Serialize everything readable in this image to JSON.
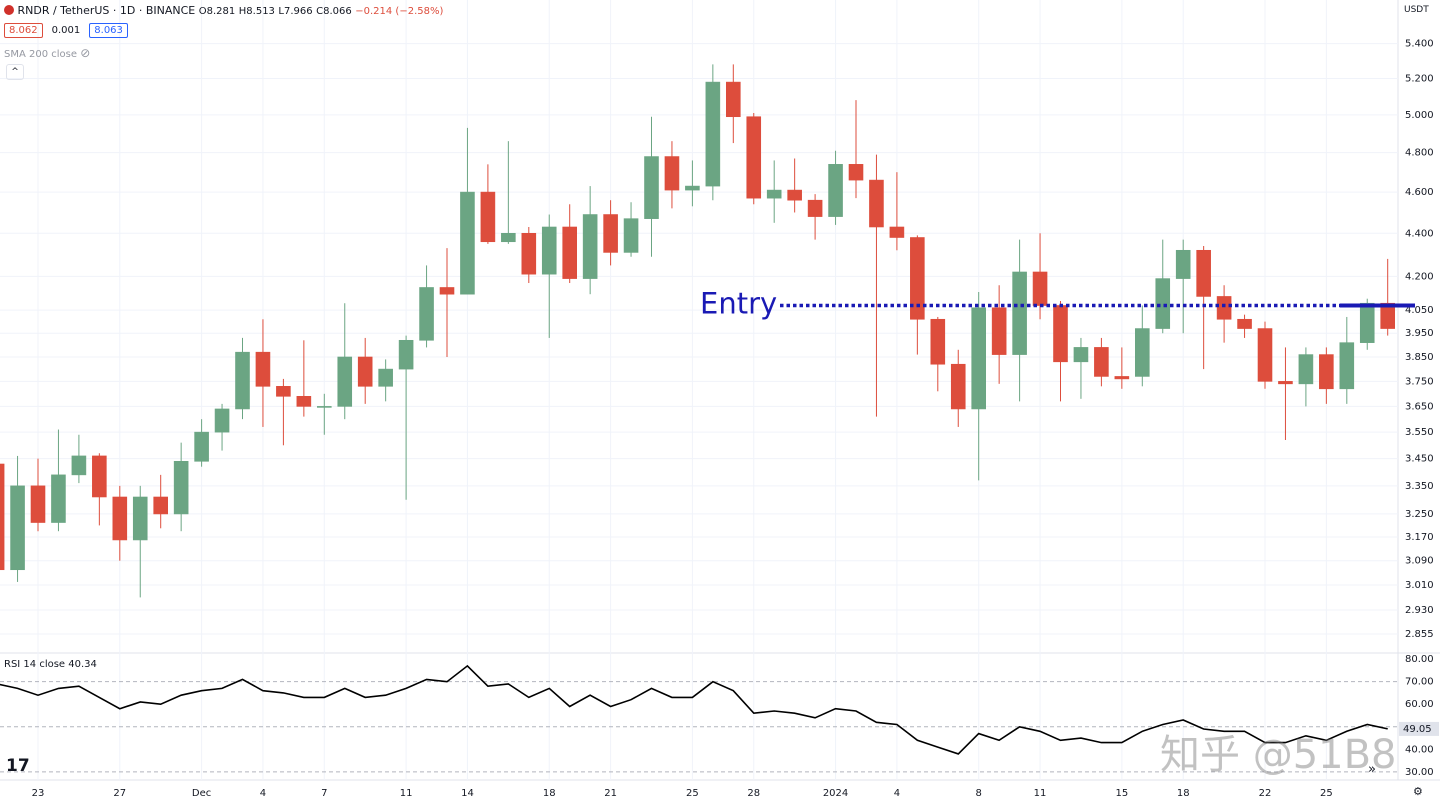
{
  "header": {
    "symbol": "RNDR / TetherUS · 1D · BINANCE",
    "ohlc": [
      "O8.281",
      "H8.513",
      "L7.966",
      "C8.066",
      "−0.214 (−2.58%)"
    ],
    "badges": [
      "8.062",
      "0.001",
      "8.063"
    ],
    "indicator": "SMA 200 close",
    "currency": "USDT",
    "watermark": "知乎 @51B8"
  },
  "chart_data": [
    {
      "type": "candlestick",
      "log": true,
      "grid": true,
      "up_color": "#6ba583",
      "down_color": "#dd4d3c",
      "categories": [
        null,
        null,
        "23",
        null,
        null,
        null,
        "27",
        null,
        null,
        null,
        "Dec",
        null,
        null,
        "4",
        null,
        null,
        "7",
        null,
        null,
        null,
        "11",
        null,
        null,
        "14",
        null,
        null,
        null,
        "18",
        null,
        null,
        "21",
        null,
        null,
        null,
        "25",
        null,
        null,
        "28",
        null,
        null,
        null,
        "2024",
        null,
        null,
        "4",
        null,
        null,
        null,
        "8",
        null,
        null,
        "11",
        null,
        null,
        null,
        "15",
        null,
        null,
        "18",
        null,
        null,
        null,
        "22",
        null,
        null,
        "25",
        null,
        null,
        null
      ],
      "open": [
        3.43,
        3.06,
        3.35,
        3.22,
        3.39,
        3.46,
        3.31,
        3.16,
        3.31,
        3.25,
        3.44,
        3.55,
        3.64,
        3.87,
        3.73,
        3.69,
        3.65,
        3.65,
        3.85,
        3.73,
        3.8,
        3.92,
        4.15,
        4.12,
        4.6,
        4.36,
        4.4,
        4.21,
        4.43,
        4.19,
        4.49,
        4.31,
        4.47,
        4.78,
        4.61,
        4.63,
        5.18,
        4.99,
        4.57,
        4.61,
        4.56,
        4.48,
        4.74,
        4.66,
        4.43,
        4.38,
        4.01,
        3.82,
        3.64,
        4.06,
        3.86,
        4.22,
        4.07,
        3.83,
        3.89,
        3.77,
        3.77,
        3.97,
        4.19,
        4.32,
        4.11,
        4.01,
        3.97,
        3.75,
        3.74,
        3.86,
        3.72,
        3.91,
        4.08
      ],
      "high": [
        3.45,
        3.46,
        3.45,
        3.56,
        3.54,
        3.47,
        3.35,
        3.35,
        3.39,
        3.51,
        3.6,
        3.66,
        3.93,
        4.01,
        3.76,
        3.92,
        3.7,
        4.08,
        3.93,
        3.84,
        3.94,
        4.25,
        4.33,
        4.93,
        4.74,
        4.86,
        4.43,
        4.49,
        4.54,
        4.63,
        4.56,
        4.55,
        4.99,
        4.86,
        4.76,
        5.28,
        5.28,
        5.01,
        4.76,
        4.77,
        4.59,
        4.81,
        5.08,
        4.79,
        4.7,
        4.39,
        4.02,
        3.88,
        4.13,
        4.16,
        4.37,
        4.4,
        4.09,
        3.93,
        3.93,
        3.89,
        4.07,
        4.37,
        4.37,
        4.34,
        4.16,
        4.03,
        4.0,
        3.89,
        3.89,
        3.89,
        4.02,
        4.1,
        4.28
      ],
      "low": [
        3.03,
        3.02,
        3.19,
        3.19,
        3.36,
        3.21,
        3.09,
        2.97,
        3.2,
        3.19,
        3.42,
        3.48,
        3.6,
        3.57,
        3.5,
        3.61,
        3.54,
        3.6,
        3.66,
        3.67,
        3.3,
        3.89,
        3.85,
        4.12,
        4.35,
        4.35,
        4.17,
        3.93,
        4.17,
        4.12,
        4.25,
        4.29,
        4.29,
        4.52,
        4.53,
        4.56,
        4.85,
        4.54,
        4.45,
        4.5,
        4.37,
        4.44,
        4.57,
        3.61,
        4.32,
        3.86,
        3.71,
        3.57,
        3.37,
        3.74,
        3.67,
        4.01,
        3.67,
        3.68,
        3.73,
        3.72,
        3.73,
        3.95,
        3.95,
        3.8,
        3.91,
        3.93,
        3.72,
        3.52,
        3.65,
        3.66,
        3.66,
        3.88,
        3.94
      ],
      "close": [
        3.06,
        3.35,
        3.22,
        3.39,
        3.46,
        3.31,
        3.16,
        3.31,
        3.25,
        3.44,
        3.55,
        3.64,
        3.87,
        3.73,
        3.69,
        3.65,
        3.65,
        3.85,
        3.73,
        3.8,
        3.92,
        4.15,
        4.12,
        4.6,
        4.36,
        4.4,
        4.21,
        4.43,
        4.19,
        4.49,
        4.31,
        4.47,
        4.78,
        4.61,
        4.63,
        5.18,
        4.99,
        4.57,
        4.61,
        4.56,
        4.48,
        4.74,
        4.66,
        4.43,
        4.38,
        4.01,
        3.82,
        3.64,
        4.06,
        3.86,
        4.22,
        4.07,
        3.83,
        3.89,
        3.77,
        3.76,
        3.97,
        4.19,
        4.32,
        4.11,
        4.01,
        3.97,
        3.75,
        3.74,
        3.86,
        3.72,
        3.91,
        4.08,
        3.97
      ],
      "ylim": [
        2.8,
        5.66
      ],
      "yticks": [
        {
          "value": 5.4,
          "label": "5.400"
        },
        {
          "value": 5.2,
          "label": "5.200"
        },
        {
          "value": 5.0,
          "label": "5.000"
        },
        {
          "value": 4.8,
          "label": "4.800"
        },
        {
          "value": 4.6,
          "label": "4.600"
        },
        {
          "value": 4.4,
          "label": "4.400"
        },
        {
          "value": 4.2,
          "label": "4.200"
        },
        {
          "value": 4.05,
          "label": "4.050"
        },
        {
          "value": 3.95,
          "label": "3.950"
        },
        {
          "value": 3.85,
          "label": "3.850"
        },
        {
          "value": 3.75,
          "label": "3.750"
        },
        {
          "value": 3.65,
          "label": "3.650"
        },
        {
          "value": 3.55,
          "label": "3.550"
        },
        {
          "value": 3.45,
          "label": "3.450"
        },
        {
          "value": 3.35,
          "label": "3.350"
        },
        {
          "value": 3.25,
          "label": "3.250"
        },
        {
          "value": 3.17,
          "label": "3.170"
        },
        {
          "value": 3.09,
          "label": "3.090"
        },
        {
          "value": 3.01,
          "label": "3.010"
        },
        {
          "value": 2.93,
          "label": "2.930"
        },
        {
          "value": 2.855,
          "label": "2.855"
        }
      ],
      "annotation": {
        "text": "Entry",
        "value": 4.07,
        "color": "#1a1ab4"
      }
    },
    {
      "type": "line",
      "title": "RSI 14 close",
      "hover_value": "40.34",
      "color": "#000000",
      "values": [
        69,
        67,
        64,
        67,
        68,
        63,
        58,
        61,
        60,
        64,
        66,
        67,
        71,
        66,
        65,
        63,
        63,
        67,
        63,
        64,
        67,
        71,
        70,
        77,
        68,
        69,
        63,
        67,
        59,
        64,
        59,
        62,
        67,
        63,
        63,
        70,
        66,
        56,
        57,
        56,
        54,
        58,
        57,
        52,
        51,
        44,
        41,
        38,
        47,
        44,
        50,
        48,
        44,
        45,
        43,
        43,
        48,
        51,
        53,
        49,
        48,
        48,
        43,
        43,
        46,
        44,
        48,
        51,
        49.05
      ],
      "ylim": [
        27.3,
        82.7
      ],
      "yticks": [
        {
          "value": 80,
          "label": "80.00"
        },
        {
          "value": 70,
          "label": "70.00"
        },
        {
          "value": 60,
          "label": "60.00"
        },
        {
          "value": 40,
          "label": "40.00"
        },
        {
          "value": 30,
          "label": "30.00"
        }
      ],
      "bands": [
        70,
        50,
        30
      ]
    }
  ]
}
